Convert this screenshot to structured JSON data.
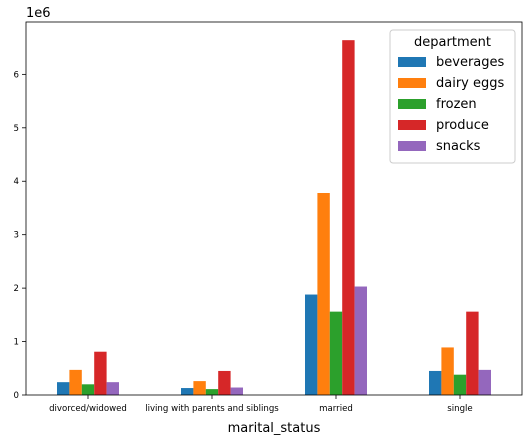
{
  "chart_data": {
    "type": "bar",
    "xlabel": "marital_status",
    "ylabel": "",
    "y_offset_label": "1e6",
    "categories": [
      "divorced/widowed",
      "living with parents and siblings",
      "married",
      "single"
    ],
    "ylim": [
      0,
      6.98
    ],
    "yticks": [
      0,
      1,
      2,
      3,
      4,
      5,
      6
    ],
    "grid": false,
    "legend": {
      "title": "department",
      "placement": "top-right"
    },
    "series": [
      {
        "name": "beverages",
        "color": "#1f77b4",
        "values": [
          0.24,
          0.13,
          1.88,
          0.45
        ]
      },
      {
        "name": "dairy eggs",
        "color": "#ff7f0e",
        "values": [
          0.47,
          0.26,
          3.78,
          0.89
        ]
      },
      {
        "name": "frozen",
        "color": "#2ca02c",
        "values": [
          0.2,
          0.11,
          1.56,
          0.38
        ]
      },
      {
        "name": "produce",
        "color": "#d62728",
        "values": [
          0.81,
          0.45,
          6.64,
          1.56
        ]
      },
      {
        "name": "snacks",
        "color": "#9467bd",
        "values": [
          0.24,
          0.14,
          2.03,
          0.47
        ]
      }
    ]
  }
}
